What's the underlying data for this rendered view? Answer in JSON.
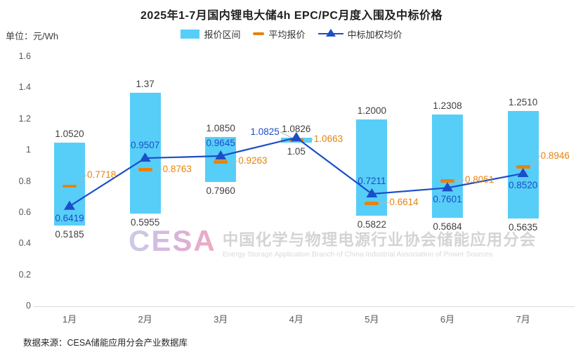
{
  "title": "2025年1-7月国内锂电大储4h EPC/PC月度入围及中标价格",
  "unit_label": "单位：元/Wh",
  "legend": {
    "items": [
      {
        "label": "报价区间",
        "marker": "bar-swatch"
      },
      {
        "label": "平均报价",
        "marker": "dash"
      },
      {
        "label": "中标加权均价",
        "marker": "line-triangle"
      }
    ]
  },
  "watermark": {
    "logo": "CESA",
    "title_cn": "中国化学与物理电源行业协会储能应用分会",
    "title_en": "Energy Storage Application Branch of China Industrial Association of Power Sources"
  },
  "source": "数据来源：CESA储能应用分会产业数据库",
  "colors": {
    "bar": "#57CEF8",
    "avg": "#E8830D",
    "line": "#1B4EC8",
    "axis": "#D9D9D9",
    "leader": "#B3B3B3",
    "value_label": "#3F3F3F"
  },
  "chart_data": {
    "type": "bar",
    "subtype": "range-bar-with-dash-markers-and-line",
    "title": "2025年1-7月国内锂电大储4h EPC/PC月度入围及中标价格",
    "ylabel": "元/Wh",
    "xlabel": "",
    "categories": [
      "1月",
      "2月",
      "3月",
      "4月",
      "5月",
      "6月",
      "7月"
    ],
    "series": [
      {
        "name": "报价区间",
        "type": "range-bar",
        "high": [
          1.052,
          1.37,
          1.085,
          1.0826,
          1.2,
          1.2308,
          1.251
        ],
        "low": [
          0.5185,
          0.5955,
          0.796,
          1.05,
          0.5822,
          0.5684,
          0.5635
        ],
        "high_labels": [
          "1.0520",
          "1.37",
          "1.0850",
          "1.0826",
          "1.2000",
          "1.2308",
          "1.2510"
        ],
        "low_labels": [
          "0.5185",
          "0.5955",
          "0.7960",
          "1.05",
          "0.5822",
          "0.5684",
          "0.5635"
        ]
      },
      {
        "name": "平均报价",
        "type": "dash-marker",
        "values": [
          0.7718,
          0.8763,
          0.9263,
          1.0663,
          0.6614,
          0.8051,
          0.8946
        ],
        "labels": [
          "0.7718",
          "0.8763",
          "0.9263",
          "1.0663",
          "0.6614",
          "0.8051",
          "0.8946"
        ],
        "label_pos": [
          "right-up",
          "right",
          "right",
          "right",
          "right",
          "right",
          "right-up"
        ]
      },
      {
        "name": "中标加权均价",
        "type": "line",
        "values": [
          0.6419,
          0.9507,
          0.9645,
          1.0825,
          0.7211,
          0.7601,
          0.852
        ],
        "labels": [
          "0.6419",
          "0.9507",
          "0.9645",
          "1.0825",
          "0.7211",
          "0.7601",
          "0.8520"
        ],
        "label_pos": [
          "below",
          "above",
          "above",
          "left-up",
          "above",
          "below",
          "below"
        ]
      }
    ],
    "ylim": [
      0,
      1.6
    ],
    "yticks": {
      "values": [
        0,
        0.2,
        0.4,
        0.6,
        0.8,
        1,
        1.2,
        1.4,
        1.6
      ],
      "labels": [
        "0",
        "0.2",
        "0.4",
        "0.6",
        "0.8",
        "1",
        "1.2",
        "1.4",
        "1.6"
      ]
    },
    "grid": false,
    "legend_position": "top-center"
  }
}
